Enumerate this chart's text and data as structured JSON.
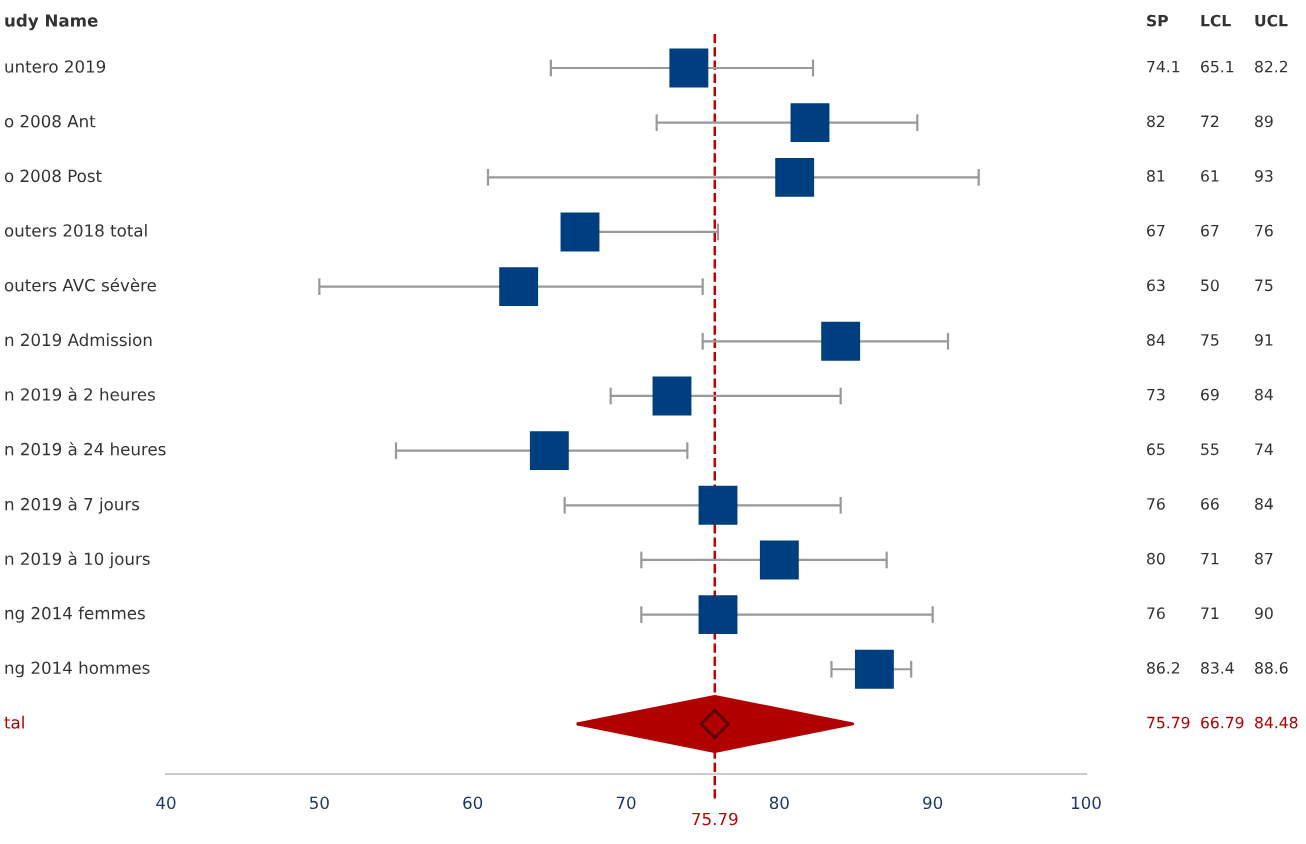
{
  "chart_data": [
    {
      "type": "scatter",
      "orientation": "horizontal",
      "ylabel": "udy Name",
      "categories": [
        "untero 2019",
        "o 2008 Ant",
        "o 2008 Post",
        "outers 2018 total",
        "outers AVC sévère",
        "n 2019 Admission",
        "n 2019 à 2 heures",
        "n 2019 à 24 heures",
        "n 2019 à 7 jours",
        "n 2019 à 10 jours",
        "ng 2014 femmes",
        "ng 2014 hommes",
        "tal"
      ],
      "series": [
        {
          "color": "#003f7f",
          "marker": "square",
          "values": [
            74.1,
            82,
            81,
            67,
            63,
            84,
            73,
            65,
            76,
            80,
            76,
            86.2,
            null
          ],
          "errors": [
            [
              65.1,
              82.2
            ],
            [
              72,
              89
            ],
            [
              61,
              93
            ],
            [
              67,
              76
            ],
            [
              50,
              75
            ],
            [
              75,
              91
            ],
            [
              69,
              84
            ],
            [
              55,
              74
            ],
            [
              66,
              84
            ],
            [
              71,
              87
            ],
            [
              71,
              90
            ],
            [
              83.4,
              88.6
            ],
            null
          ]
        },
        {
          "color": "#b00000",
          "marker": "diamond",
          "values": [
            null,
            null,
            null,
            null,
            null,
            null,
            null,
            null,
            null,
            null,
            null,
            null,
            75.79
          ],
          "errors": [
            null,
            null,
            null,
            null,
            null,
            null,
            null,
            null,
            null,
            null,
            null,
            null,
            [
              66.79,
              84.48
            ]
          ]
        }
      ],
      "xlim": [
        40,
        100
      ],
      "xticks": [
        40,
        50,
        60,
        70,
        80,
        90,
        100
      ],
      "grid": false,
      "ref_lines": [
        {
          "axis": "x",
          "value": 75.79,
          "label": "75.79",
          "color": "#c00000",
          "line_style": "dashed"
        }
      ]
    },
    {
      "type": "other",
      "annotations": [
        "SP",
        "LCL",
        "UCL",
        "74.1",
        "65.1",
        "82.2",
        "82",
        "72",
        "89",
        "81",
        "61",
        "93",
        "67",
        "67",
        "76",
        "63",
        "50",
        "75",
        "84",
        "75",
        "91",
        "73",
        "69",
        "84",
        "65",
        "55",
        "74",
        "76",
        "66",
        "84",
        "80",
        "71",
        "87",
        "76",
        "71",
        "90",
        "86.2",
        "83.4",
        "88.6",
        "75.79",
        "66.79",
        "84.48"
      ],
      "colors": [
        "#333333",
        "#333333",
        "#333333",
        "#333333",
        "#333333",
        "#333333",
        "#333333",
        "#333333",
        "#333333",
        "#333333",
        "#333333",
        "#333333",
        "#333333",
        "#333333",
        "#333333",
        "#333333",
        "#333333",
        "#333333",
        "#333333",
        "#333333",
        "#333333",
        "#333333",
        "#333333",
        "#333333",
        "#333333",
        "#333333",
        "#333333",
        "#333333",
        "#333333",
        "#333333",
        "#333333",
        "#333333",
        "#333333",
        "#333333",
        "#333333",
        "#333333",
        "#333333",
        "#333333",
        "#333333",
        "#b00000",
        "#b00000",
        "#b00000"
      ]
    }
  ]
}
